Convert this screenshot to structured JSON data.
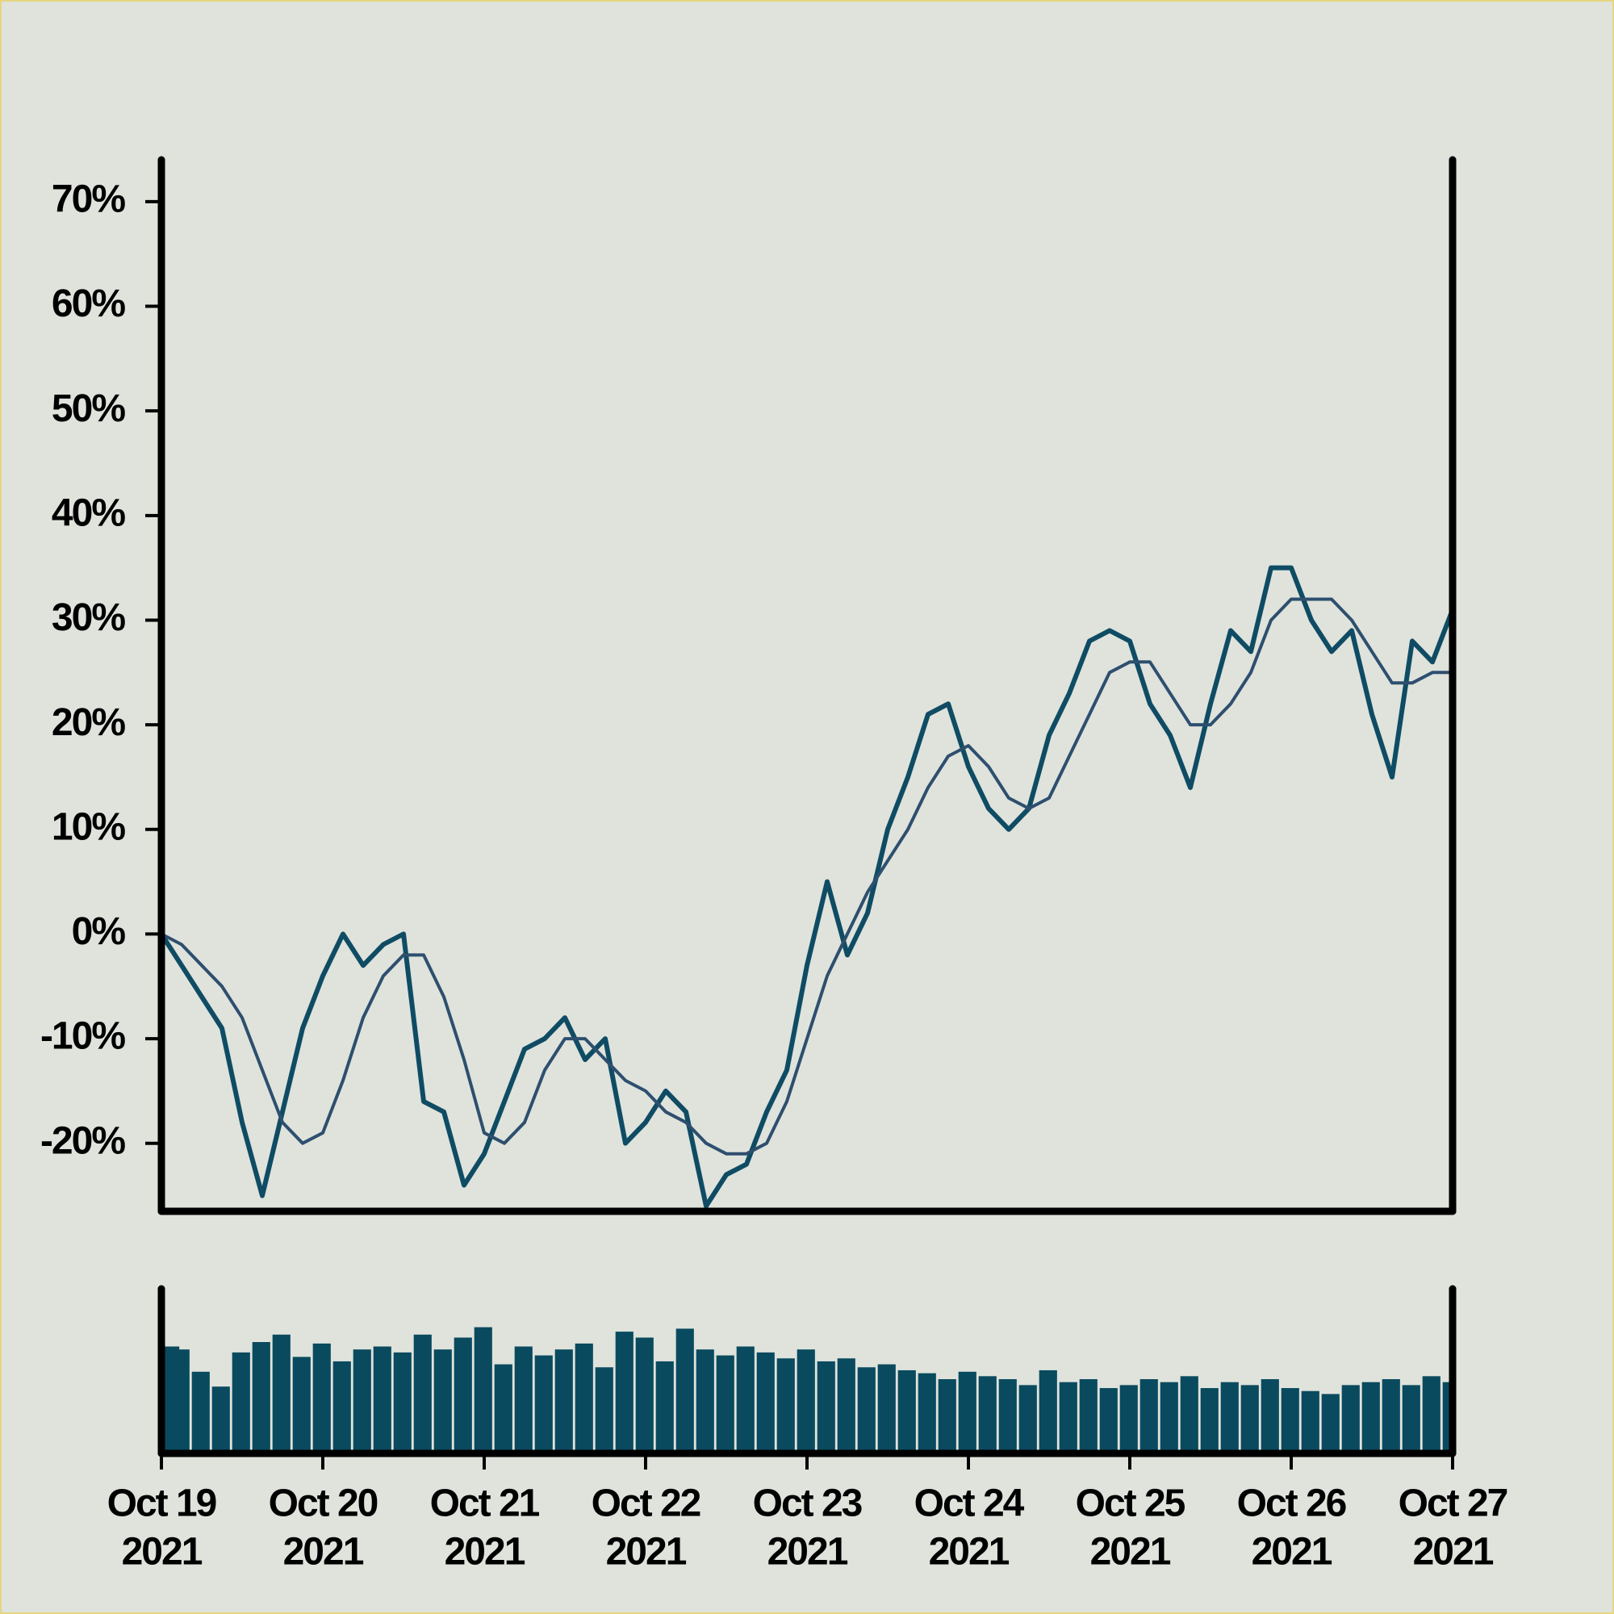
{
  "chart_data": {
    "type": "line",
    "x": [
      "2021-10-19 00:00",
      "2021-10-19 03:00",
      "2021-10-19 06:00",
      "2021-10-19 09:00",
      "2021-10-19 12:00",
      "2021-10-19 15:00",
      "2021-10-19 18:00",
      "2021-10-19 21:00",
      "2021-10-20 00:00",
      "2021-10-20 03:00",
      "2021-10-20 06:00",
      "2021-10-20 09:00",
      "2021-10-20 12:00",
      "2021-10-20 15:00",
      "2021-10-20 18:00",
      "2021-10-20 21:00",
      "2021-10-21 00:00",
      "2021-10-21 03:00",
      "2021-10-21 06:00",
      "2021-10-21 09:00",
      "2021-10-21 12:00",
      "2021-10-21 15:00",
      "2021-10-21 18:00",
      "2021-10-21 21:00",
      "2021-10-22 00:00",
      "2021-10-22 03:00",
      "2021-10-22 06:00",
      "2021-10-22 09:00",
      "2021-10-22 12:00",
      "2021-10-22 15:00",
      "2021-10-22 18:00",
      "2021-10-22 21:00",
      "2021-10-23 00:00",
      "2021-10-23 03:00",
      "2021-10-23 06:00",
      "2021-10-23 09:00",
      "2021-10-23 12:00",
      "2021-10-23 15:00",
      "2021-10-23 18:00",
      "2021-10-23 21:00",
      "2021-10-24 00:00",
      "2021-10-24 03:00",
      "2021-10-24 06:00",
      "2021-10-24 09:00",
      "2021-10-24 12:00",
      "2021-10-24 15:00",
      "2021-10-24 18:00",
      "2021-10-24 21:00",
      "2021-10-25 00:00",
      "2021-10-25 03:00",
      "2021-10-25 06:00",
      "2021-10-25 09:00",
      "2021-10-25 12:00",
      "2021-10-25 15:00",
      "2021-10-25 18:00",
      "2021-10-25 21:00",
      "2021-10-26 00:00",
      "2021-10-26 03:00",
      "2021-10-26 06:00",
      "2021-10-26 09:00",
      "2021-10-26 12:00",
      "2021-10-26 15:00",
      "2021-10-26 18:00",
      "2021-10-26 21:00",
      "2021-10-27 00:00"
    ],
    "series": [
      {
        "color": "#0f4c64",
        "width": 6,
        "values": [
          0,
          -3,
          -6,
          -9,
          -18,
          -25,
          -17,
          -9,
          -4,
          0,
          -3,
          -1,
          0,
          -16,
          -17,
          -24,
          -21,
          -16,
          -11,
          -10,
          -8,
          -12,
          -10,
          -20,
          -18,
          -15,
          -17,
          -26,
          -23,
          -22,
          -17,
          -13,
          -3,
          5,
          -2,
          2,
          10,
          15,
          21,
          22,
          16,
          12,
          10,
          12,
          19,
          23,
          28,
          29,
          28,
          22,
          19,
          14,
          22,
          29,
          27,
          35,
          35,
          30,
          27,
          29,
          21,
          15,
          28,
          26,
          31
        ]
      },
      {
        "color": "#2e4f6e",
        "width": 4,
        "values": [
          0,
          -1,
          -3,
          -5,
          -8,
          -13,
          -18,
          -20,
          -19,
          -14,
          -8,
          -4,
          -2,
          -2,
          -6,
          -12,
          -19,
          -20,
          -18,
          -13,
          -10,
          -10,
          -12,
          -14,
          -15,
          -17,
          -18,
          -20,
          -21,
          -21,
          -20,
          -16,
          -10,
          -4,
          0,
          4,
          7,
          10,
          14,
          17,
          18,
          16,
          13,
          12,
          13,
          17,
          21,
          25,
          26,
          26,
          23,
          20,
          20,
          22,
          25,
          30,
          32,
          32,
          32,
          30,
          27,
          24,
          24,
          25,
          25
        ]
      }
    ],
    "volume": {
      "color": "#0a4a5e",
      "ylim": [
        0,
        100
      ],
      "values": [
        72,
        70,
        55,
        45,
        68,
        75,
        80,
        65,
        74,
        62,
        70,
        72,
        68,
        80,
        70,
        78,
        85,
        60,
        72,
        66,
        70,
        74,
        58,
        82,
        78,
        62,
        84,
        70,
        66,
        72,
        68,
        64,
        70,
        62,
        64,
        58,
        60,
        56,
        54,
        50,
        55,
        52,
        50,
        46,
        56,
        48,
        50,
        44,
        46,
        50,
        48,
        52,
        44,
        48,
        46,
        50,
        44,
        42,
        40,
        46,
        48,
        50,
        46,
        52,
        48
      ]
    },
    "xlim": [
      "2021-10-19 00:00",
      "2021-10-27 00:00"
    ],
    "xticks": [
      {
        "value": "2021-10-19 00:00",
        "label": [
          "Oct 19",
          "2021"
        ]
      },
      {
        "value": "2021-10-20 00:00",
        "label": [
          "Oct 20",
          "2021"
        ]
      },
      {
        "value": "2021-10-21 00:00",
        "label": [
          "Oct 21",
          "2021"
        ]
      },
      {
        "value": "2021-10-22 00:00",
        "label": [
          "Oct 22",
          "2021"
        ]
      },
      {
        "value": "2021-10-23 00:00",
        "label": [
          "Oct 23",
          "2021"
        ]
      },
      {
        "value": "2021-10-24 00:00",
        "label": [
          "Oct 24",
          "2021"
        ]
      },
      {
        "value": "2021-10-25 00:00",
        "label": [
          "Oct 25",
          "2021"
        ]
      },
      {
        "value": "2021-10-26 00:00",
        "label": [
          "Oct 26",
          "2021"
        ]
      },
      {
        "value": "2021-10-27 00:00",
        "label": [
          "Oct 27",
          "2021"
        ]
      }
    ],
    "ylim": [
      -26.5,
      74
    ],
    "yticks": [
      {
        "value": -20,
        "label": "-20%"
      },
      {
        "value": -10,
        "label": "-10%"
      },
      {
        "value": 0,
        "label": "0%"
      },
      {
        "value": 10,
        "label": "10%"
      },
      {
        "value": 20,
        "label": "20%"
      },
      {
        "value": 30,
        "label": "30%"
      },
      {
        "value": 40,
        "label": "40%"
      },
      {
        "value": 50,
        "label": "50%"
      },
      {
        "value": 60,
        "label": "60%"
      },
      {
        "value": 70,
        "label": "70%"
      }
    ]
  }
}
